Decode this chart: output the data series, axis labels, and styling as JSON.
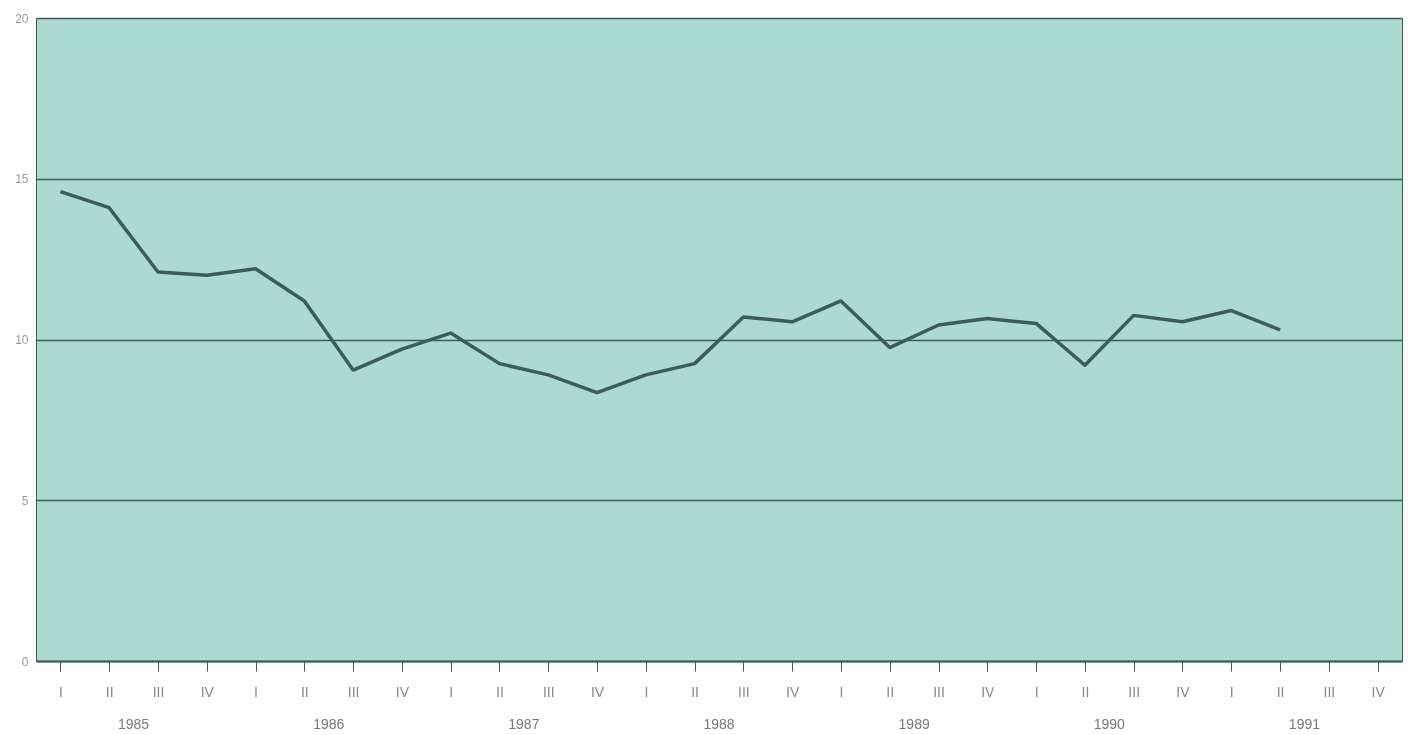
{
  "chart_data": {
    "type": "line",
    "categories": [
      "I",
      "II",
      "III",
      "IV",
      "I",
      "II",
      "III",
      "IV",
      "I",
      "II",
      "III",
      "IV",
      "I",
      "II",
      "III",
      "IV",
      "I",
      "II",
      "III",
      "IV",
      "I",
      "II",
      "III",
      "IV",
      "I",
      "II",
      "III",
      "IV"
    ],
    "series": [
      {
        "color": "#3d5c58",
        "values": [
          14.6,
          14.1,
          12.1,
          12.0,
          12.2,
          11.2,
          9.05,
          9.7,
          10.2,
          9.25,
          8.9,
          8.35,
          8.9,
          9.25,
          10.7,
          10.55,
          11.2,
          9.75,
          10.45,
          10.65,
          10.5,
          9.2,
          10.75,
          10.55,
          10.9,
          10.3,
          null,
          null
        ]
      }
    ],
    "ylim": [
      0,
      20
    ],
    "yticks": [
      0,
      5,
      10,
      15,
      20
    ],
    "grid": "y",
    "marker": "none",
    "line_style": "solid",
    "annotations": [
      "1985",
      "1986",
      "1987",
      "1988",
      "1989",
      "1990",
      "1991"
    ]
  }
}
